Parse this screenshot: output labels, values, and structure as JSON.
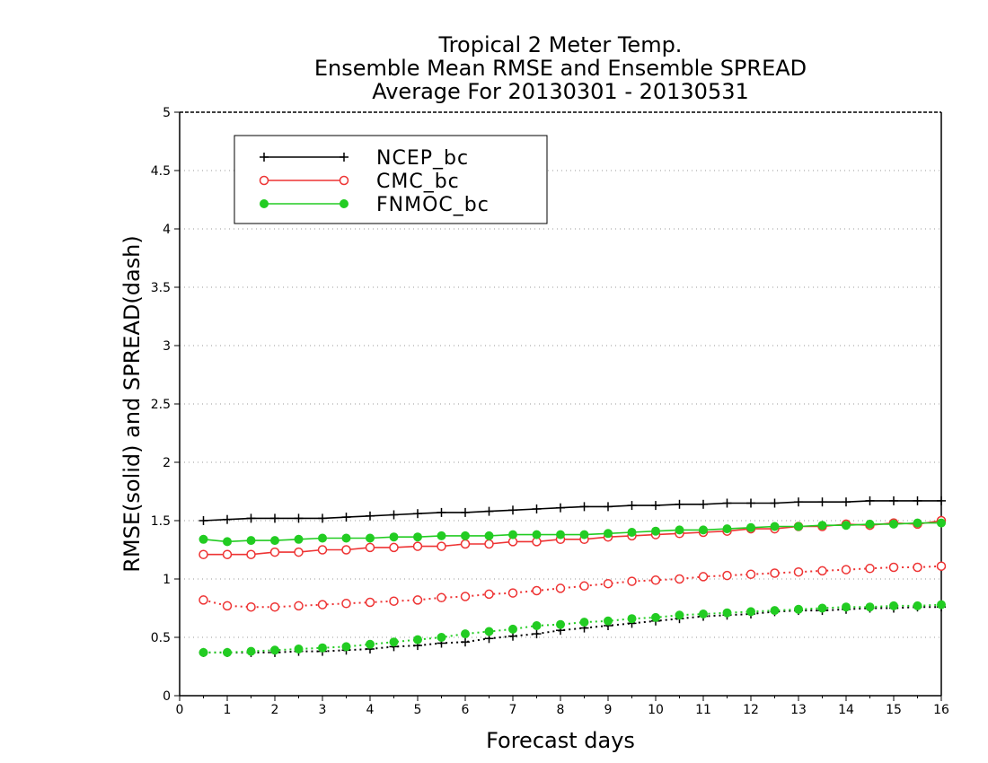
{
  "chart_data": {
    "type": "line",
    "title": [
      "Tropical 2 Meter Temp.",
      "Ensemble Mean RMSE and Ensemble SPREAD",
      "Average For 20130301 - 20130531"
    ],
    "xlabel": "Forecast days",
    "ylabel": "RMSE(solid) and SPREAD(dash)",
    "xlim": [
      0,
      16
    ],
    "ylim": [
      0,
      5
    ],
    "xticks": [
      "0",
      "1",
      "2",
      "3",
      "4",
      "5",
      "6",
      "7",
      "8",
      "9",
      "10",
      "11",
      "12",
      "13",
      "14",
      "15",
      "16"
    ],
    "yticks": [
      "0",
      "0.5",
      "1",
      "1.5",
      "2",
      "2.5",
      "3",
      "3.5",
      "4",
      "4.5",
      "5"
    ],
    "grid": "horizontal dotted",
    "legend_position": "top-left",
    "x": [
      0.5,
      1,
      1.5,
      2,
      2.5,
      3,
      3.5,
      4,
      4.5,
      5,
      5.5,
      6,
      6.5,
      7,
      7.5,
      8,
      8.5,
      9,
      9.5,
      10,
      10.5,
      11,
      11.5,
      12,
      12.5,
      13,
      13.5,
      14,
      14.5,
      15,
      15.5,
      16
    ],
    "series": [
      {
        "name": "NCEP_bc",
        "color": "#000000",
        "marker": "plus",
        "style": "solid",
        "values": [
          1.5,
          1.51,
          1.52,
          1.52,
          1.52,
          1.52,
          1.53,
          1.54,
          1.55,
          1.56,
          1.57,
          1.57,
          1.58,
          1.59,
          1.6,
          1.61,
          1.62,
          1.62,
          1.63,
          1.63,
          1.64,
          1.64,
          1.65,
          1.65,
          1.65,
          1.66,
          1.66,
          1.66,
          1.67,
          1.67,
          1.67,
          1.67
        ]
      },
      {
        "name": "CMC_bc",
        "color": "#ee3333",
        "marker": "open-circle",
        "style": "solid",
        "values": [
          1.21,
          1.21,
          1.21,
          1.23,
          1.23,
          1.25,
          1.25,
          1.27,
          1.27,
          1.28,
          1.28,
          1.3,
          1.3,
          1.32,
          1.32,
          1.34,
          1.34,
          1.36,
          1.37,
          1.38,
          1.39,
          1.4,
          1.41,
          1.43,
          1.43,
          1.45,
          1.45,
          1.47,
          1.46,
          1.48,
          1.47,
          1.5
        ]
      },
      {
        "name": "FNMOC_bc",
        "color": "#22cc22",
        "marker": "filled-circle",
        "style": "solid",
        "values": [
          1.34,
          1.32,
          1.33,
          1.33,
          1.34,
          1.35,
          1.35,
          1.35,
          1.36,
          1.36,
          1.37,
          1.37,
          1.37,
          1.38,
          1.38,
          1.38,
          1.38,
          1.39,
          1.4,
          1.41,
          1.42,
          1.42,
          1.43,
          1.44,
          1.45,
          1.45,
          1.46,
          1.46,
          1.47,
          1.47,
          1.48,
          1.48
        ]
      },
      {
        "name": "NCEP_bc spread",
        "color": "#000000",
        "marker": "plus",
        "style": "dotted",
        "values": [
          0.37,
          0.37,
          0.37,
          0.37,
          0.38,
          0.38,
          0.39,
          0.4,
          0.42,
          0.43,
          0.45,
          0.46,
          0.49,
          0.51,
          0.53,
          0.56,
          0.58,
          0.6,
          0.62,
          0.64,
          0.66,
          0.68,
          0.69,
          0.7,
          0.72,
          0.73,
          0.73,
          0.74,
          0.75,
          0.75,
          0.76,
          0.76
        ]
      },
      {
        "name": "CMC_bc spread",
        "color": "#ee3333",
        "marker": "open-circle",
        "style": "dotted",
        "values": [
          0.82,
          0.77,
          0.76,
          0.76,
          0.77,
          0.78,
          0.79,
          0.8,
          0.81,
          0.82,
          0.84,
          0.85,
          0.87,
          0.88,
          0.9,
          0.92,
          0.94,
          0.96,
          0.98,
          0.99,
          1.0,
          1.02,
          1.03,
          1.04,
          1.05,
          1.06,
          1.07,
          1.08,
          1.09,
          1.1,
          1.1,
          1.11
        ]
      },
      {
        "name": "FNMOC_bc spread",
        "color": "#22cc22",
        "marker": "filled-circle",
        "style": "dotted",
        "values": [
          0.37,
          0.37,
          0.38,
          0.39,
          0.4,
          0.41,
          0.42,
          0.44,
          0.46,
          0.48,
          0.5,
          0.53,
          0.55,
          0.57,
          0.6,
          0.61,
          0.63,
          0.64,
          0.66,
          0.67,
          0.69,
          0.7,
          0.71,
          0.72,
          0.73,
          0.74,
          0.75,
          0.76,
          0.76,
          0.77,
          0.77,
          0.78
        ]
      }
    ],
    "legend": [
      "NCEP_bc",
      "CMC_bc",
      "FNMOC_bc"
    ]
  }
}
